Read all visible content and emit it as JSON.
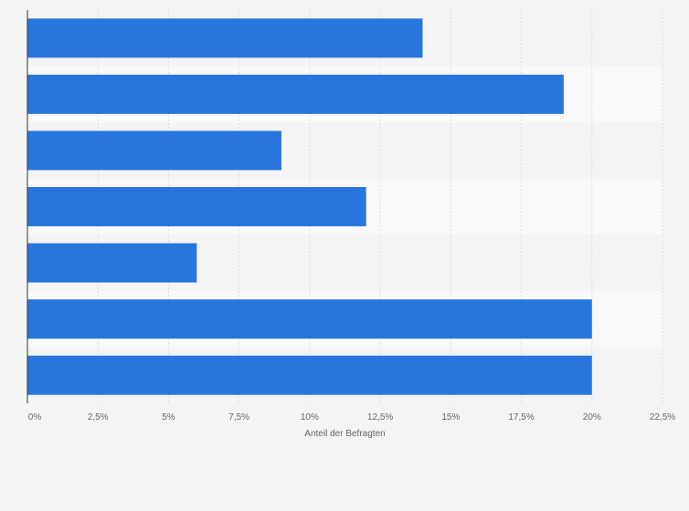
{
  "chart_data": {
    "type": "bar",
    "orientation": "horizontal",
    "categories": [
      "",
      "",
      "",
      "",
      "",
      "",
      ""
    ],
    "values": [
      14,
      19,
      9,
      12,
      6,
      20,
      20
    ],
    "title": "",
    "xlabel": "Anteil der Befragten",
    "ylabel": "",
    "xlim": [
      0,
      22.5
    ],
    "x_ticks": [
      0,
      2.5,
      5,
      7.5,
      10,
      12.5,
      15,
      17.5,
      20,
      22.5
    ],
    "x_tick_labels": [
      "0%",
      "2,5%",
      "5%",
      "7,5%",
      "10%",
      "12,5%",
      "15%",
      "17,5%",
      "20%",
      "22,5%"
    ],
    "grid": true,
    "legend": "none",
    "colors": {
      "bar": "#2876dd",
      "band_light": "#f9f9f9",
      "band_dark": "#f4f4f4",
      "grid": "#dcdcdc",
      "axis": "#333333",
      "text": "#666666"
    }
  }
}
